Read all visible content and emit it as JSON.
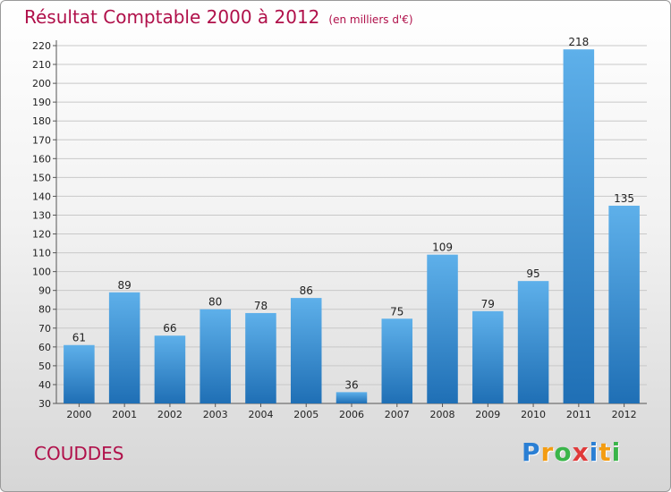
{
  "chart_data": {
    "type": "bar",
    "title": "Résultat Comptable 2000 à 2012",
    "subtitle": "(en milliers d'€)",
    "categories": [
      "2000",
      "2001",
      "2002",
      "2003",
      "2004",
      "2005",
      "2006",
      "2007",
      "2008",
      "2009",
      "2010",
      "2011",
      "2012"
    ],
    "values": [
      61,
      89,
      66,
      80,
      78,
      86,
      36,
      75,
      109,
      79,
      95,
      218,
      135
    ],
    "ylim": [
      30,
      220
    ],
    "yticks": [
      30,
      40,
      50,
      60,
      70,
      80,
      90,
      100,
      110,
      120,
      130,
      140,
      150,
      160,
      170,
      180,
      190,
      200,
      210,
      220
    ],
    "grid": true,
    "bar_color": "#3d8fd6"
  },
  "commune": "COUDDES",
  "logo": {
    "letters": [
      "P",
      "r",
      "o",
      "x",
      "i",
      "t",
      "i"
    ],
    "colors": [
      "#2a7fd4",
      "#f39c12",
      "#3ab54a",
      "#e03a3a",
      "#2a7fd4",
      "#f39c12",
      "#3ab54a"
    ]
  }
}
